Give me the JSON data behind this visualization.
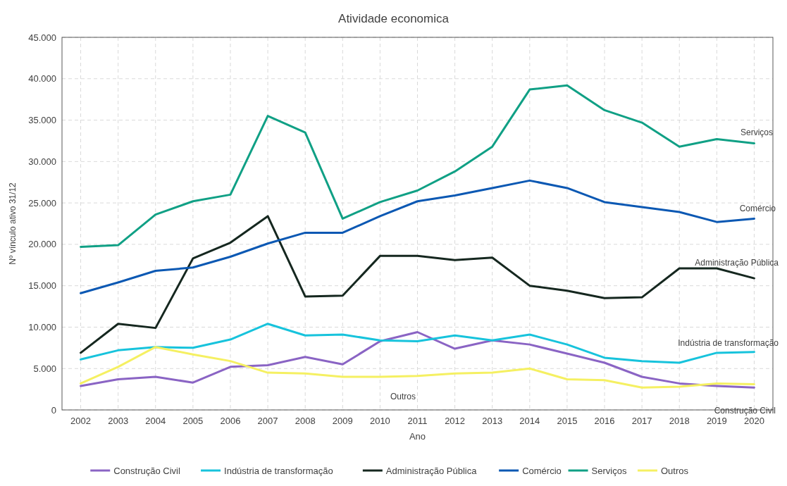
{
  "chart_data": {
    "type": "line",
    "title": "Atividade economica",
    "xlabel": "Ano",
    "ylabel": "Nº vínculo ativo 31/12",
    "x": [
      2002,
      2003,
      2004,
      2005,
      2006,
      2007,
      2008,
      2009,
      2010,
      2011,
      2012,
      2013,
      2014,
      2015,
      2016,
      2017,
      2018,
      2019,
      2020
    ],
    "series": [
      {
        "name": "Construção Civil",
        "color": "#8a64c4",
        "values": [
          2900,
          3700,
          4000,
          3300,
          5200,
          5400,
          6400,
          5500,
          8300,
          9400,
          7400,
          8400,
          7900,
          6800,
          5700,
          4000,
          3200,
          2900,
          2700
        ]
      },
      {
        "name": "Indústria de transformação",
        "color": "#17c3dc",
        "values": [
          6100,
          7200,
          7600,
          7500,
          8500,
          10400,
          9000,
          9100,
          8400,
          8300,
          9000,
          8400,
          9100,
          7900,
          6300,
          5900,
          5700,
          6900,
          7000
        ]
      },
      {
        "name": "Administração Pública",
        "color": "#15271f",
        "values": [
          6900,
          10400,
          9900,
          18300,
          20200,
          23400,
          13700,
          13800,
          18600,
          18600,
          18100,
          18400,
          15000,
          14400,
          13500,
          13600,
          17100,
          17100,
          15900
        ]
      },
      {
        "name": "Comércio",
        "color": "#0b58b3",
        "values": [
          14100,
          15400,
          16800,
          17200,
          18500,
          20100,
          21400,
          21400,
          23400,
          25200,
          25900,
          26800,
          27700,
          26800,
          25100,
          24500,
          23900,
          22700,
          23100
        ]
      },
      {
        "name": "Serviços",
        "color": "#10a085",
        "values": [
          19700,
          19900,
          23600,
          25200,
          26000,
          35500,
          33500,
          23100,
          25100,
          26500,
          28800,
          31800,
          38700,
          39200,
          36200,
          34700,
          31800,
          32700,
          32200
        ]
      },
      {
        "name": "Outros",
        "color": "#f5f062",
        "values": [
          3200,
          5200,
          7600,
          6700,
          5900,
          4500,
          4400,
          4000,
          4000,
          4100,
          4400,
          4500,
          5000,
          3700,
          3600,
          2700,
          2800,
          3200,
          3100
        ]
      }
    ],
    "xlim": [
      2001.5,
      2020.5
    ],
    "xticks": [
      2002,
      2003,
      2004,
      2005,
      2006,
      2007,
      2008,
      2009,
      2010,
      2011,
      2012,
      2013,
      2014,
      2015,
      2016,
      2017,
      2018,
      2019,
      2020
    ],
    "ylim": [
      0,
      45000
    ],
    "yticks": [
      0,
      {
        "value": 5000,
        "label": "5.000"
      },
      {
        "value": 10000,
        "label": "10.000"
      },
      {
        "value": 15000,
        "label": "15.000"
      },
      {
        "value": 20000,
        "label": "20.000"
      },
      {
        "value": 25000,
        "label": "25.000"
      },
      {
        "value": 30000,
        "label": "30.000"
      },
      {
        "value": 35000,
        "label": "35.000"
      },
      {
        "value": 40000,
        "label": "40.000"
      },
      {
        "value": 45000,
        "label": "45.000"
      }
    ],
    "grid": true,
    "legend": "bottom",
    "line_style": "solid",
    "annotations": [
      "Serviços",
      "Comércio",
      "Administração Pública",
      "Indústria de transformação",
      "Construção Civil",
      "Outros"
    ]
  }
}
